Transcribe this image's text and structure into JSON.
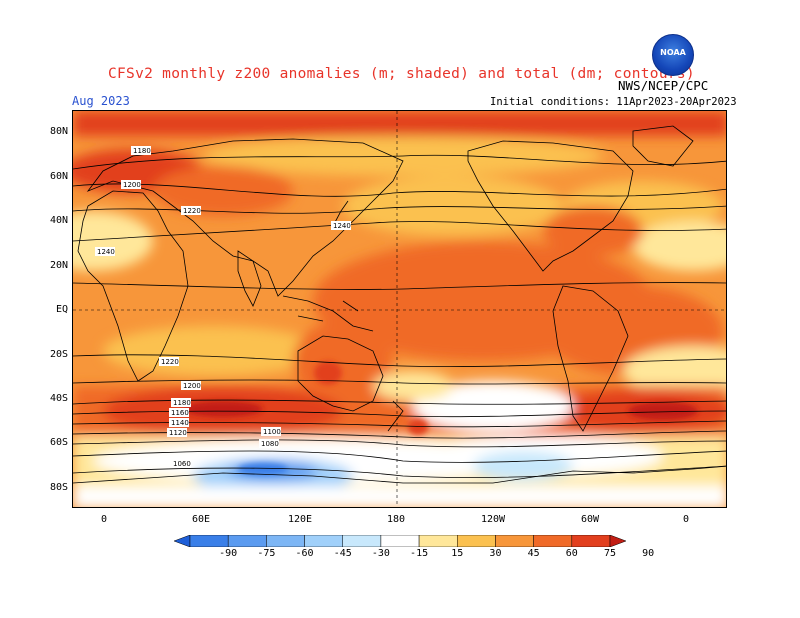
{
  "header": {
    "title": "CFSv2 monthly z200 anomalies (m; shaded) and total (dm; contours)",
    "org": "NWS/NCEP/CPC",
    "period": "Aug 2023",
    "initial_conditions": "Initial conditions: 11Apr2023-20Apr2023",
    "logo_text": "NOAA"
  },
  "axes": {
    "lat_labels": [
      "80N",
      "60N",
      "40N",
      "20N",
      "EQ",
      "20S",
      "40S",
      "60S",
      "80S"
    ],
    "lon_labels": [
      "0",
      "60E",
      "120E",
      "180",
      "120W",
      "60W",
      "0"
    ]
  },
  "contours": {
    "labels": [
      "1180",
      "1200",
      "1220",
      "1240",
      "1240",
      "1220",
      "1200",
      "1180",
      "1160",
      "1140",
      "1120",
      "1100",
      "1080",
      "1060"
    ]
  },
  "colorbar": {
    "ticks": [
      "-90",
      "-75",
      "-60",
      "-45",
      "-30",
      "-15",
      "15",
      "30",
      "45",
      "60",
      "75",
      "90"
    ],
    "colors": [
      "#1e5fd8",
      "#3a7fe8",
      "#5b9bf0",
      "#7db6f5",
      "#a0d0fa",
      "#c8e8fc",
      "#ffffff",
      "#ffe79a",
      "#fbc150",
      "#f7963a",
      "#f06a28",
      "#e23f1e",
      "#c21e14"
    ]
  }
}
